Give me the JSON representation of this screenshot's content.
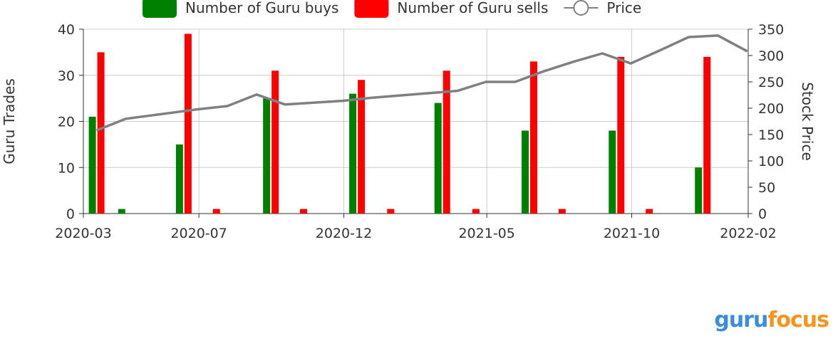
{
  "chart_data": {
    "type": "bar",
    "legend": {
      "position": "top",
      "items": [
        {
          "label": "Number of Guru buys",
          "color": "#008000"
        },
        {
          "label": "Number of Guru sells",
          "color": "#ff0000"
        },
        {
          "label": "Price",
          "color": "#808080"
        }
      ]
    },
    "x_tick_labels": [
      "2020-03",
      "2020-07",
      "2020-12",
      "2021-05",
      "2021-10",
      "2022-02"
    ],
    "ylabel_left": "Guru Trades",
    "ylabel_right": "Stock Price",
    "ylim_left": [
      0,
      40
    ],
    "yticks_left": [
      "0",
      "10",
      "20",
      "30",
      "40"
    ],
    "ylim_right": [
      0,
      350
    ],
    "yticks_right": [
      "0",
      "50",
      "100",
      "150",
      "200",
      "250",
      "300",
      "350"
    ],
    "grid": true,
    "series": [
      {
        "name": "Number of Guru buys",
        "color": "#008000",
        "type": "bar",
        "points": [
          {
            "date": "2020-03-15",
            "value": 21
          },
          {
            "date": "2020-04-15",
            "value": 1
          },
          {
            "date": "2020-06-15",
            "value": 15
          },
          {
            "date": "2020-09-15",
            "value": 25
          },
          {
            "date": "2020-12-15",
            "value": 26
          },
          {
            "date": "2021-03-15",
            "value": 24
          },
          {
            "date": "2021-06-15",
            "value": 18
          },
          {
            "date": "2021-09-15",
            "value": 18
          },
          {
            "date": "2021-12-15",
            "value": 10
          }
        ]
      },
      {
        "name": "Number of Guru sells",
        "color": "#ff0000",
        "type": "bar",
        "points": [
          {
            "date": "2020-03-15",
            "value": 35
          },
          {
            "date": "2020-06-15",
            "value": 39
          },
          {
            "date": "2020-07-15",
            "value": 1
          },
          {
            "date": "2020-09-15",
            "value": 31
          },
          {
            "date": "2020-10-15",
            "value": 1
          },
          {
            "date": "2020-12-15",
            "value": 29
          },
          {
            "date": "2021-01-15",
            "value": 1
          },
          {
            "date": "2021-03-15",
            "value": 31
          },
          {
            "date": "2021-04-15",
            "value": 1
          },
          {
            "date": "2021-06-15",
            "value": 33
          },
          {
            "date": "2021-07-15",
            "value": 1
          },
          {
            "date": "2021-09-15",
            "value": 34
          },
          {
            "date": "2021-10-15",
            "value": 1
          },
          {
            "date": "2021-12-15",
            "value": 34
          }
        ]
      },
      {
        "name": "Price",
        "color": "#808080",
        "type": "line",
        "axis": "right",
        "points": [
          {
            "date": "2020-03-15",
            "value": 158
          },
          {
            "date": "2020-04-15",
            "value": 180
          },
          {
            "date": "2020-06-30",
            "value": 198
          },
          {
            "date": "2020-07-31",
            "value": 204
          },
          {
            "date": "2020-08-31",
            "value": 226
          },
          {
            "date": "2020-09-30",
            "value": 207
          },
          {
            "date": "2020-11-30",
            "value": 214
          },
          {
            "date": "2020-12-31",
            "value": 220
          },
          {
            "date": "2021-03-31",
            "value": 233
          },
          {
            "date": "2021-04-30",
            "value": 250
          },
          {
            "date": "2021-05-31",
            "value": 250
          },
          {
            "date": "2021-06-30",
            "value": 270
          },
          {
            "date": "2021-07-31",
            "value": 288
          },
          {
            "date": "2021-08-31",
            "value": 304
          },
          {
            "date": "2021-09-30",
            "value": 285
          },
          {
            "date": "2021-10-31",
            "value": 310
          },
          {
            "date": "2021-11-30",
            "value": 335
          },
          {
            "date": "2021-12-31",
            "value": 338
          },
          {
            "date": "2022-01-31",
            "value": 308
          }
        ]
      }
    ]
  },
  "branding": {
    "logo_part1": "guru",
    "logo_part2": "focus"
  }
}
